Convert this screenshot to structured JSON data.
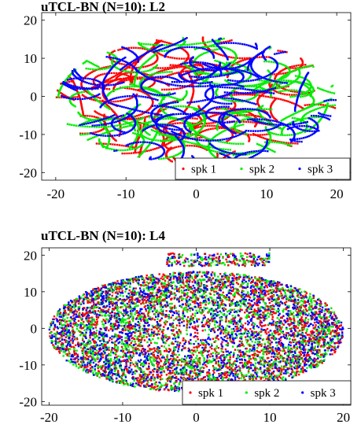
{
  "chart_data": [
    {
      "type": "scatter",
      "title": "uTCL-BN (N=10): L2",
      "xlim": [
        -22,
        22
      ],
      "ylim": [
        -22,
        22
      ],
      "xticks": [
        "-20",
        "-10",
        "0",
        "10",
        "20"
      ],
      "yticks": [
        "20",
        "10",
        "0",
        "-10",
        "-20"
      ],
      "grid": false,
      "legend_position": "bottom-right",
      "pattern": "curved trajectories",
      "series": [
        {
          "name": "spk 1",
          "color": "#ff0000"
        },
        {
          "name": "spk 2",
          "color": "#00ee00"
        },
        {
          "name": "spk 3",
          "color": "#0000ff"
        }
      ]
    },
    {
      "type": "scatter",
      "title": "uTCL-BN (N=10): L4",
      "xlim": [
        -21,
        21
      ],
      "ylim": [
        -21,
        22
      ],
      "xticks": [
        "-20",
        "-10",
        "0",
        "10",
        "20"
      ],
      "yticks": [
        "20",
        "10",
        "0",
        "-10",
        "-20"
      ],
      "grid": false,
      "legend_position": "bottom-right",
      "pattern": "dense cloud",
      "series": [
        {
          "name": "spk 1",
          "color": "#ff0000"
        },
        {
          "name": "spk 2",
          "color": "#00ee00"
        },
        {
          "name": "spk 3",
          "color": "#0000ff"
        }
      ]
    }
  ]
}
